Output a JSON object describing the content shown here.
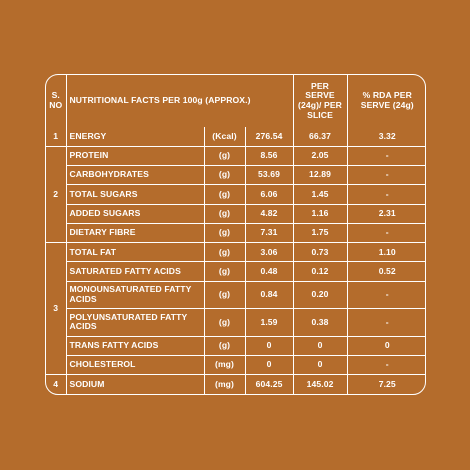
{
  "header": {
    "sno": "S. NO",
    "title": "NUTRITIONAL FACTS PER 100g (APPROX.)",
    "per_serve": "PER SERVE (24g)/ PER SLICE",
    "rda": "% RDA PER SERVE (24g)"
  },
  "groups": [
    {
      "sno": "1",
      "rows": [
        {
          "name": "ENERGY",
          "unit": "(Kcal)",
          "per100": "276.54",
          "serve": "66.37",
          "rda": "3.32"
        }
      ]
    },
    {
      "sno": "2",
      "rows": [
        {
          "name": "PROTEIN",
          "unit": "(g)",
          "per100": "8.56",
          "serve": "2.05",
          "rda": "-"
        },
        {
          "name": "CARBOHYDRATES",
          "unit": "(g)",
          "per100": "53.69",
          "serve": "12.89",
          "rda": "-"
        },
        {
          "name": "TOTAL SUGARS",
          "unit": "(g)",
          "per100": "6.06",
          "serve": "1.45",
          "rda": "-"
        },
        {
          "name": "ADDED SUGARS",
          "unit": "(g)",
          "per100": "4.82",
          "serve": "1.16",
          "rda": "2.31"
        },
        {
          "name": "DIETARY FIBRE",
          "unit": "(g)",
          "per100": "7.31",
          "serve": "1.75",
          "rda": "-"
        }
      ]
    },
    {
      "sno": "3",
      "rows": [
        {
          "name": "TOTAL FAT",
          "unit": "(g)",
          "per100": "3.06",
          "serve": "0.73",
          "rda": "1.10"
        },
        {
          "name": "SATURATED FATTY ACIDS",
          "unit": "(g)",
          "per100": "0.48",
          "serve": "0.12",
          "rda": "0.52"
        },
        {
          "name": "MONOUNSATURATED FATTY ACIDS",
          "unit": "(g)",
          "per100": "0.84",
          "serve": "0.20",
          "rda": "-"
        },
        {
          "name": "POLYUNSATURATED FATTY ACIDS",
          "unit": "(g)",
          "per100": "1.59",
          "serve": "0.38",
          "rda": "-"
        },
        {
          "name": "TRANS FATTY ACIDS",
          "unit": "(g)",
          "per100": "0",
          "serve": "0",
          "rda": "0"
        },
        {
          "name": "CHOLESTEROL",
          "unit": "(mg)",
          "per100": "0",
          "serve": "0",
          "rda": "-"
        }
      ]
    },
    {
      "sno": "4",
      "rows": [
        {
          "name": "SODIUM",
          "unit": "(mg)",
          "per100": "604.25",
          "serve": "145.02",
          "rda": "7.25"
        }
      ]
    }
  ],
  "colors": {
    "background": "#b46c2c",
    "lines_text": "#ffffff"
  }
}
